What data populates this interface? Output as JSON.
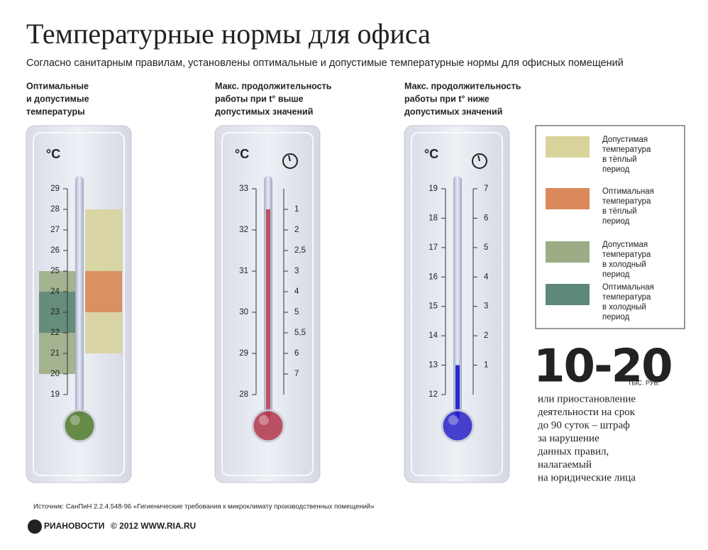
{
  "header": {
    "title": "Температурные нормы для офиса",
    "subtitle": "Согласно санитарным правилам, установлены оптимальные и допустимые температурные нормы для офисных помещений"
  },
  "thermometers": [
    {
      "heading": [
        "Оптимальные",
        "и допустимые",
        "температуры"
      ],
      "unit": "°С",
      "lim": [
        19,
        29
      ],
      "ticks": [
        19,
        20,
        21,
        22,
        23,
        24,
        25,
        26,
        27,
        28,
        29
      ],
      "bulb_color": "#4f7a2c",
      "series": [
        {
          "name": [
            "Допустимая",
            "температура",
            "в тёплый",
            "период"
          ],
          "color": "#d8d39b",
          "range": [
            21,
            28
          ]
        },
        {
          "name": [
            "Оптимальная",
            "температура",
            "в тёплый",
            "период"
          ],
          "color": "#d9895a",
          "range": [
            23,
            25
          ]
        },
        {
          "name": [
            "Допустимая",
            "температура",
            "в холодный",
            "период"
          ],
          "color": "#9cad85",
          "range": [
            20,
            25
          ]
        },
        {
          "name": [
            "Оптимальная",
            "температура",
            "в холодный",
            "период"
          ],
          "color": "#5e8878",
          "range": [
            22,
            24
          ]
        }
      ]
    },
    {
      "heading": [
        "Макс. продолжительность",
        "работы при t° выше",
        "допустимых значений"
      ],
      "unit": "°С",
      "lim": [
        28,
        33
      ],
      "ticks": [
        28,
        29,
        30,
        31,
        32,
        33
      ],
      "fill": 32.5,
      "fill_color": "#c0505e",
      "bulb_color": "#b2364a",
      "hour_ticks": [
        {
          "value": 1,
          "at": 32.5
        },
        {
          "value": 2,
          "at": 32
        },
        {
          "value": 2.5,
          "label": "2,5",
          "at": 31.5
        },
        {
          "value": 3,
          "at": 31
        },
        {
          "value": 4,
          "at": 30.5
        },
        {
          "value": 5,
          "at": 30
        },
        {
          "value": 5.5,
          "label": "5,5",
          "at": 29.5
        },
        {
          "value": 6,
          "at": 29
        },
        {
          "value": 7,
          "at": 28.5
        }
      ]
    },
    {
      "heading": [
        "Макс. продолжительность",
        "работы при t° ниже",
        "допустимых значений"
      ],
      "unit": "°С",
      "lim": [
        12,
        19
      ],
      "ticks": [
        12,
        13,
        14,
        15,
        16,
        17,
        18,
        19
      ],
      "fill": 13,
      "fill_color": "#2a2ad0",
      "bulb_color": "#2a22c8",
      "hour_ticks": [
        {
          "value": 1,
          "at": 13
        },
        {
          "value": 2,
          "at": 14
        },
        {
          "value": 3,
          "at": 15
        },
        {
          "value": 4,
          "at": 16
        },
        {
          "value": 5,
          "at": 17
        },
        {
          "value": 6,
          "at": 18
        },
        {
          "value": 7,
          "at": 19
        }
      ]
    }
  ],
  "penalty": {
    "amount": "10-20",
    "unit": "ТЫС. РУБ.",
    "text": [
      "или приостановление",
      "деятельности на срок",
      "до 90 суток – штраф",
      "за нарушение",
      "данных правил,",
      "налагаемый",
      "на юридические лица"
    ]
  },
  "source": "Источник: СанПиН 2.2.4.548-96 «Гигиенические требования к микроклимату производственных помещений»",
  "footer": {
    "brand": "РИАНОВОСТИ",
    "copyright": "© 2012 WWW.RIA.RU"
  }
}
